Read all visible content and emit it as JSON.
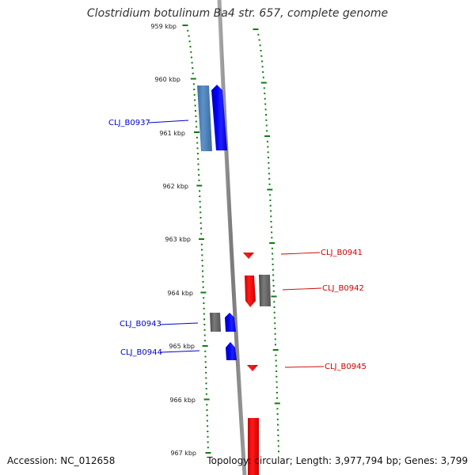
{
  "title": "Clostridium botulinum Ba4 str. 657, complete genome",
  "footer": {
    "accession_label": "Accession:",
    "accession_value": "NC_012658",
    "topology_label": "Topology:",
    "topology_value": "circular",
    "length_label": "Length:",
    "length_value": "3,977,794 bp",
    "genes_label": "Genes:",
    "genes_value": "3,799"
  },
  "scale": {
    "unit": "kbp",
    "ticks": [
      "959 kbp",
      "960 kbp",
      "961 kbp",
      "962 kbp",
      "963 kbp",
      "964 kbp",
      "965 kbp",
      "966 kbp",
      "967 kbp"
    ]
  },
  "features": [
    {
      "label": "CLJ_B0937",
      "strand": "forward",
      "color": "#0000cc"
    },
    {
      "label": "CLJ_B0941",
      "strand": "reverse",
      "color": "#cc0000"
    },
    {
      "label": "CLJ_B0942",
      "strand": "reverse",
      "color": "#cc0000"
    },
    {
      "label": "CLJ_B0943",
      "strand": "forward",
      "color": "#0000cc"
    },
    {
      "label": "CLJ_B0944",
      "strand": "forward",
      "color": "#0000cc"
    },
    {
      "label": "CLJ_B0945",
      "strand": "reverse",
      "color": "#cc0000"
    }
  ],
  "colors": {
    "forward_gene": "#0000ff",
    "reverse_gene": "#ff0000",
    "other_feature_forward": "#4a7fb5",
    "other_feature_gray": "#6a6a6a",
    "tick_marks": "#117a11",
    "backbone": "#8a8a8a"
  }
}
